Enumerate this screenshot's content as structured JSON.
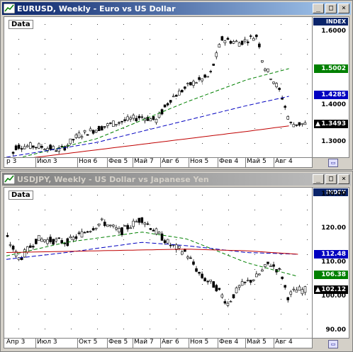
{
  "windows": [
    {
      "title": "EURUSD, Weekly - Euro vs US Dollar",
      "state": "active",
      "data_label": "Data",
      "index_label": "INDEX",
      "y_ticks": [
        "1.6000",
        "1.5002",
        "1.4285",
        "1.4000",
        "1.3493",
        "1.3000"
      ],
      "y_tick_values": [
        1.6,
        1.5002,
        1.4285,
        1.4,
        1.3493,
        1.3
      ],
      "badges": [
        {
          "text": "1.5002",
          "value": 1.5002,
          "color": "#008000"
        },
        {
          "text": "1.4285",
          "value": 1.4285,
          "color": "#0000c0"
        },
        {
          "text": "1.3493",
          "value": 1.3493,
          "color": "#000000",
          "marker": "▲"
        }
      ],
      "x_labels": [
        "р 3",
        "Июл 3",
        "Ноя 6",
        "Фев 5",
        "Май 7",
        "Авг 6",
        "Ноя 5",
        "Фев 4",
        "Май 5",
        "Авг 4"
      ],
      "ylim": [
        1.26,
        1.64
      ]
    },
    {
      "title": "USDJPY, Weekly - US Dollar vs Japanese Yen",
      "state": "inactive",
      "data_label": "Data",
      "index_label": "INDEX",
      "y_ticks": [
        "130.00",
        "120.00",
        "112.48",
        "110.00",
        "106.38",
        "102.12",
        "100.00",
        "90.00"
      ],
      "y_tick_values": [
        130,
        120,
        112.48,
        110,
        106.38,
        102.12,
        100,
        90
      ],
      "badges": [
        {
          "text": "112.48",
          "value": 112.48,
          "color": "#0000c0"
        },
        {
          "text": "106.38",
          "value": 106.38,
          "color": "#008000"
        },
        {
          "text": "102.12",
          "value": 102.12,
          "color": "#000000",
          "marker": "▲"
        }
      ],
      "x_labels": [
        "Апр 3",
        "Июл 3",
        "Окт 5",
        "Фев 5",
        "Май 7",
        "Авг 6",
        "Ноя 5",
        "Фев 4",
        "Май 5",
        "Авг 4"
      ],
      "ylim": [
        88,
        132
      ]
    }
  ],
  "title_buttons": {
    "minimize": "_",
    "maximize": "□",
    "close": "×"
  },
  "corner_button": "▭",
  "colors": {
    "ma_green": "#008000",
    "ma_blue": "#0000c0",
    "ma_red": "#c00000",
    "candle_up": "#008000",
    "candle_down": "#c00000",
    "active_title": "#0a246a"
  }
}
